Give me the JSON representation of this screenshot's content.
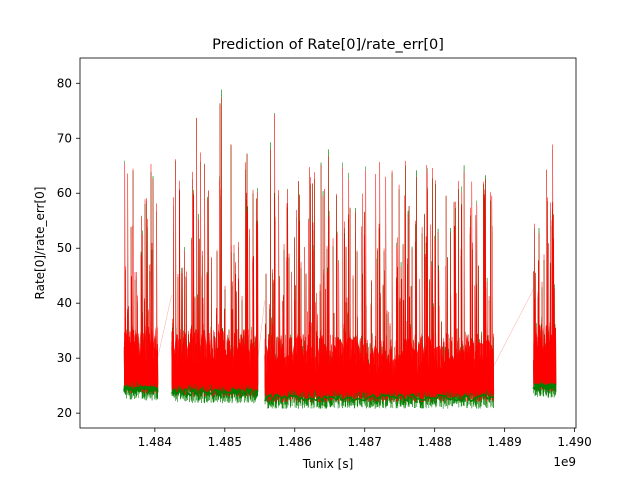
{
  "chart_data": {
    "type": "line",
    "title": "Prediction of Rate[0]/rate_err[0]",
    "xlabel": "Tunix [s]",
    "ylabel": "Rate[0]/rate_err[0]",
    "x_offset_label": "1e9",
    "xlim": [
      1.48293,
      1.49002
    ],
    "ylim": [
      17.3,
      84.6
    ],
    "xticks": [
      1.484,
      1.485,
      1.486,
      1.487,
      1.488,
      1.489,
      1.49
    ],
    "xtick_labels": [
      "1.484",
      "1.485",
      "1.486",
      "1.487",
      "1.488",
      "1.489",
      "1.490"
    ],
    "yticks": [
      20,
      30,
      40,
      50,
      60,
      70,
      80
    ],
    "ytick_labels": [
      "20",
      "30",
      "40",
      "50",
      "60",
      "70",
      "80"
    ],
    "grid": false,
    "legend": "none",
    "observation_segments": [
      {
        "start": 1.48356,
        "end": 1.48404,
        "base": 24.0,
        "typical_peak": 62,
        "max_peak": 77
      },
      {
        "start": 1.48424,
        "end": 1.48547,
        "base": 23.5,
        "typical_peak": 65,
        "max_peak": 78
      },
      {
        "start": 1.48557,
        "end": 1.48884,
        "base": 22.5,
        "typical_peak": 62,
        "max_peak": 81.5
      },
      {
        "start": 1.48941,
        "end": 1.48973,
        "base": 24.5,
        "typical_peak": 58,
        "max_peak": 69
      }
    ],
    "series": [
      {
        "name": "",
        "color": "#008000"
      },
      {
        "name": "",
        "color": "#ff0000"
      }
    ]
  }
}
